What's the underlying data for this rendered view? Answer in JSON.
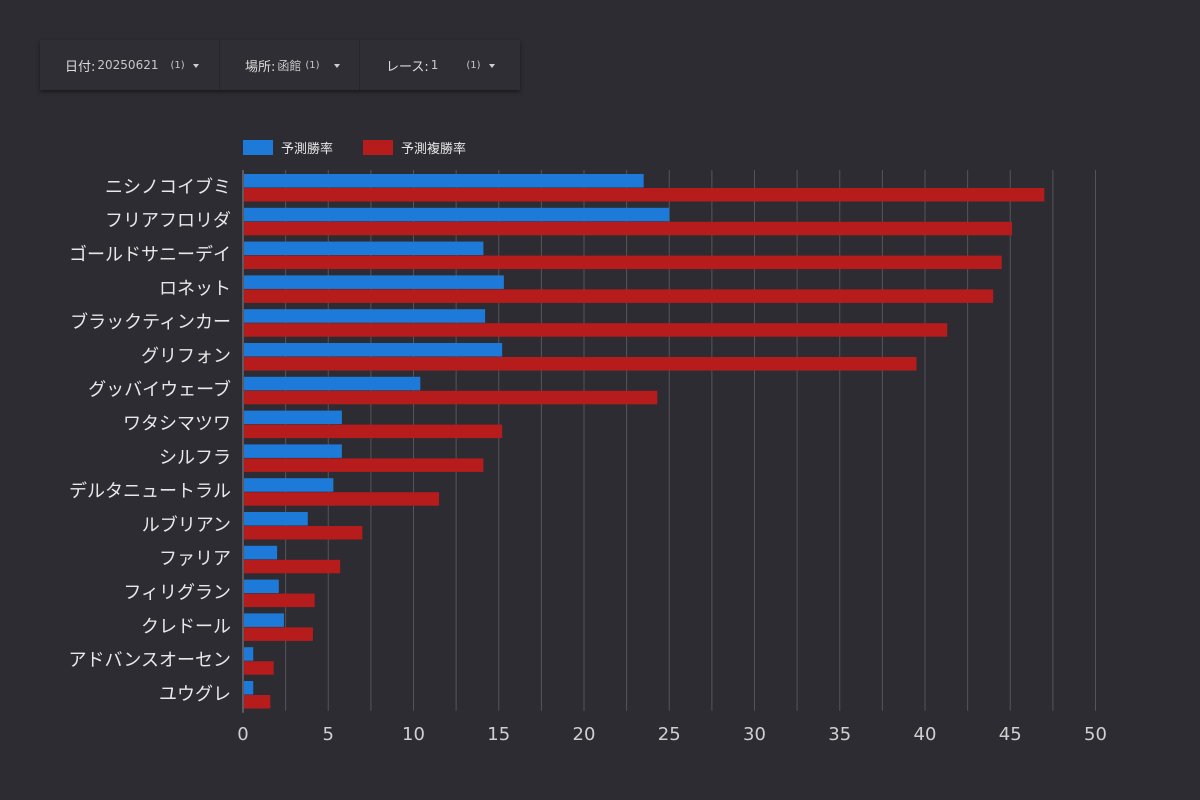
{
  "filters": [
    {
      "label": "日付:",
      "value": "20250621",
      "count": "(1)",
      "icon": "caret-down-icon"
    },
    {
      "label": "場所:",
      "value": "函館",
      "count": "(1)",
      "icon": "caret-down-icon"
    },
    {
      "label": "レース:",
      "value": "1",
      "count": "(1)",
      "icon": "caret-down-icon"
    }
  ],
  "chart_data": {
    "type": "bar",
    "orientation": "horizontal",
    "categories": [
      "ニシノコイブミ",
      "フリアフロリダ",
      "ゴールドサニーデイ",
      "ロネット",
      "ブラックティンカー",
      "グリフォン",
      "グッバイウェーブ",
      "ワタシマツワ",
      "シルフラ",
      "デルタニュートラル",
      "ルブリアン",
      "ファリア",
      "フィリグラン",
      "クレドール",
      "アドバンスオーセン",
      "ユウグレ"
    ],
    "series": [
      {
        "name": "予測勝率",
        "color": "#1e7ad8",
        "values": [
          23.5,
          25.0,
          14.1,
          15.3,
          14.2,
          15.2,
          10.4,
          5.8,
          5.8,
          5.3,
          3.8,
          2.0,
          2.1,
          2.4,
          0.6,
          0.6
        ]
      },
      {
        "name": "予測複勝率",
        "color": "#b71c1c",
        "values": [
          47.0,
          45.1,
          44.5,
          44.0,
          41.3,
          39.5,
          24.3,
          15.2,
          14.1,
          11.5,
          7.0,
          5.7,
          4.2,
          4.1,
          1.8,
          1.6
        ]
      }
    ],
    "xticks": [
      "0",
      "5",
      "10",
      "15",
      "20",
      "25",
      "30",
      "35",
      "40",
      "45",
      "50"
    ],
    "xlim": [
      0,
      52
    ],
    "grid": true,
    "legend_position": "top-left",
    "title": "",
    "xlabel": "",
    "ylabel": ""
  }
}
